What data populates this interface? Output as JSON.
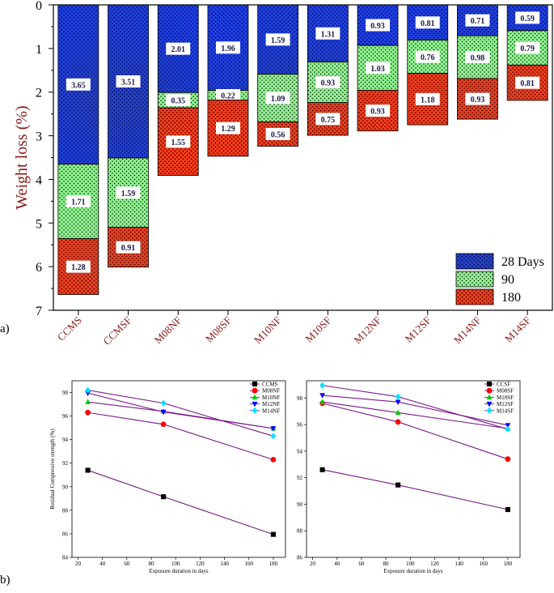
{
  "panel_a_label": "a)",
  "panel_b_label": "b)",
  "chart_data": [
    {
      "type": "bar",
      "stacked": true,
      "ylabel": "Weight loss (%)",
      "ylim": [
        0,
        7
      ],
      "y_inverted": true,
      "yticks": [
        "0",
        "1",
        "2",
        "3",
        "4",
        "5",
        "6",
        "7"
      ],
      "categories": [
        "CCMS",
        "CCMSF",
        "M08NF",
        "M08SF",
        "M10NF",
        "M10SF",
        "M12NF",
        "M12SF",
        "M14NF",
        "M14SF"
      ],
      "series": [
        {
          "name": "28 Days",
          "color": "#1f3fe0",
          "values": [
            3.65,
            3.51,
            2.01,
            1.96,
            1.59,
            1.31,
            0.93,
            0.81,
            0.71,
            0.59
          ],
          "labels": [
            "3.65",
            "3.51",
            "2.01",
            "1.96",
            "1.59",
            "1.31",
            "0.93",
            "0.81",
            "0.71",
            "0.59"
          ]
        },
        {
          "name": "90",
          "color": "#8ff58f",
          "values": [
            1.71,
            1.59,
            0.35,
            0.22,
            1.09,
            0.93,
            1.03,
            0.76,
            0.98,
            0.79
          ],
          "labels": [
            "1.71",
            "1.59",
            "0.35",
            "0.22",
            "1.09",
            "0.93",
            "1.03",
            "0.76",
            "0.98",
            "0.79"
          ]
        },
        {
          "name": "180",
          "color": "#f53a1a",
          "values": [
            1.28,
            0.91,
            1.55,
            1.29,
            0.56,
            0.75,
            0.93,
            1.18,
            0.93,
            0.81
          ],
          "labels": [
            "1.28",
            "0.91",
            "1.55",
            "1.29",
            "0.56",
            "0.75",
            "0.93",
            "1.18",
            "0.93",
            "0.81"
          ]
        }
      ],
      "legend": [
        "28 Days",
        "90",
        "180"
      ],
      "legend_position": "bottom-right"
    },
    {
      "type": "line",
      "xlabel": "Exposure duration in days",
      "ylabel": "Residual Compressive strength (%)",
      "xlim": [
        15,
        190
      ],
      "ylim": [
        84,
        99
      ],
      "xticks": [
        "20",
        "40",
        "60",
        "80",
        "100",
        "120",
        "140",
        "160",
        "180"
      ],
      "yticks": [
        "84",
        "86",
        "88",
        "90",
        "92",
        "94",
        "96",
        "98"
      ],
      "x": [
        28,
        90,
        180
      ],
      "line_color": "#7a1a8a",
      "series": [
        {
          "name": "CCMS",
          "marker": "square",
          "color": "#000000",
          "values": [
            91.4,
            89.15,
            85.95
          ]
        },
        {
          "name": "M08NF",
          "marker": "circle",
          "color": "#ff0000",
          "values": [
            96.3,
            95.3,
            92.3
          ]
        },
        {
          "name": "M10NF",
          "marker": "triangle-up",
          "color": "#00cc00",
          "values": [
            97.2,
            96.4,
            94.95
          ]
        },
        {
          "name": "M12NF",
          "marker": "triangle-down",
          "color": "#0000ff",
          "values": [
            97.95,
            96.35,
            94.95
          ]
        },
        {
          "name": "M14NF",
          "marker": "diamond",
          "color": "#00e5ff",
          "values": [
            98.2,
            97.1,
            94.3
          ]
        }
      ],
      "legend_position": "top-right"
    },
    {
      "type": "line",
      "xlabel": "Exposure duration in days",
      "ylabel": "",
      "xlim": [
        15,
        190
      ],
      "ylim": [
        86,
        99.3
      ],
      "xticks": [
        "20",
        "40",
        "60",
        "80",
        "100",
        "120",
        "140",
        "160",
        "180"
      ],
      "yticks": [
        "86",
        "88",
        "90",
        "92",
        "94",
        "96",
        "98"
      ],
      "x": [
        28,
        90,
        180
      ],
      "line_color": "#7a1a8a",
      "series": [
        {
          "name": "CCSF",
          "marker": "square",
          "color": "#000000",
          "values": [
            92.6,
            91.45,
            89.6
          ]
        },
        {
          "name": "M08SF",
          "marker": "circle",
          "color": "#ff0000",
          "values": [
            97.6,
            96.2,
            93.4
          ]
        },
        {
          "name": "M10SF",
          "marker": "triangle-up",
          "color": "#00cc00",
          "values": [
            97.7,
            96.9,
            95.7
          ]
        },
        {
          "name": "M12SF",
          "marker": "triangle-down",
          "color": "#0000ff",
          "values": [
            98.2,
            97.7,
            95.95
          ]
        },
        {
          "name": "M14SF",
          "marker": "diamond",
          "color": "#00e5ff",
          "values": [
            98.95,
            98.1,
            95.65
          ]
        }
      ],
      "legend_position": "top-right"
    }
  ]
}
